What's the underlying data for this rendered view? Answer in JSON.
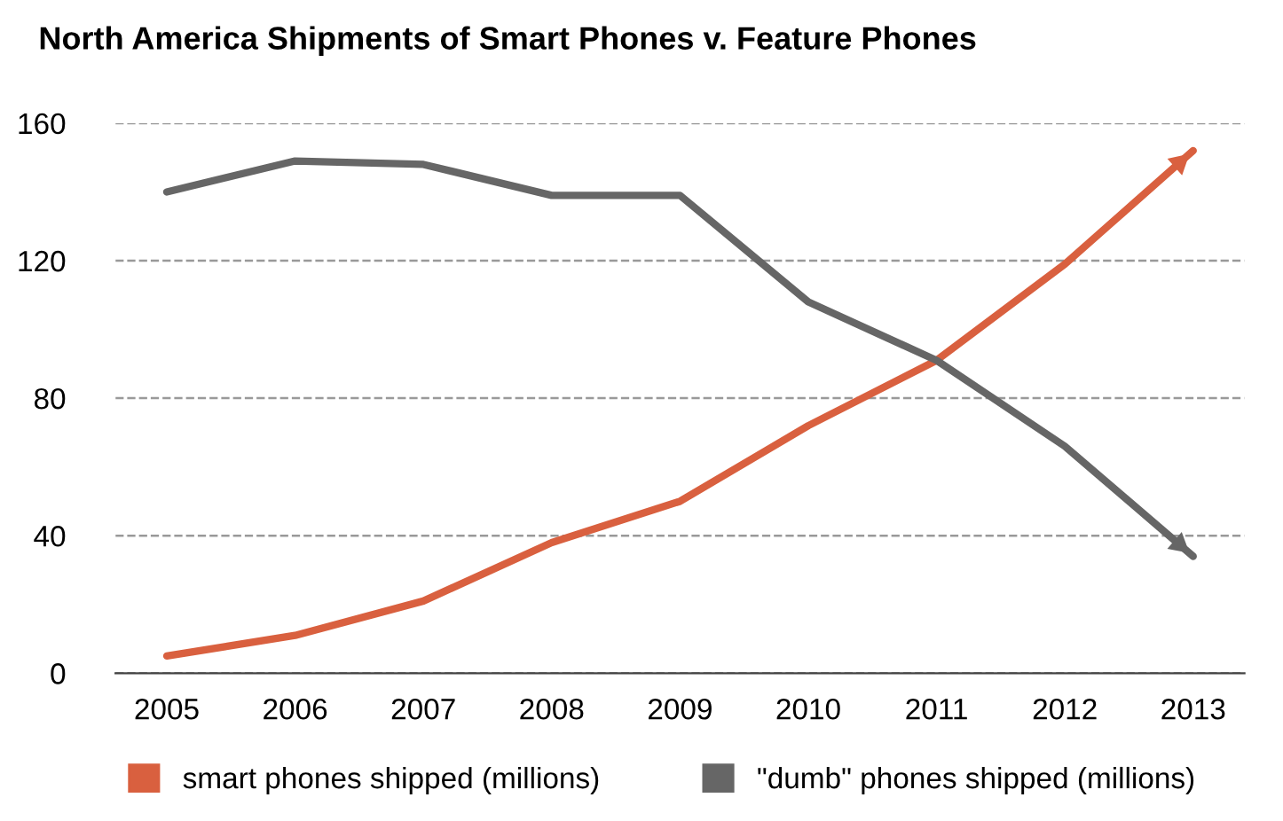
{
  "chart_data": {
    "type": "line",
    "title": "North America Shipments of Smart Phones v. Feature Phones",
    "categories": [
      "2005",
      "2006",
      "2007",
      "2008",
      "2009",
      "2010",
      "2011",
      "2012",
      "2013"
    ],
    "series": [
      {
        "name": "smart phones shipped (millions)",
        "color": "#d9603f",
        "values": [
          5,
          11,
          21,
          38,
          50,
          72,
          91,
          119,
          152
        ]
      },
      {
        "name": "\"dumb\" phones shipped (millions)",
        "color": "#666666",
        "values": [
          140,
          149,
          148,
          139,
          139,
          108,
          91,
          66,
          34
        ]
      }
    ],
    "ylim": [
      0,
      160
    ],
    "yticks": [
      0,
      40,
      80,
      120,
      160
    ],
    "grid": "y",
    "legend": "bottom",
    "line_style": "solid",
    "marker": "none"
  }
}
